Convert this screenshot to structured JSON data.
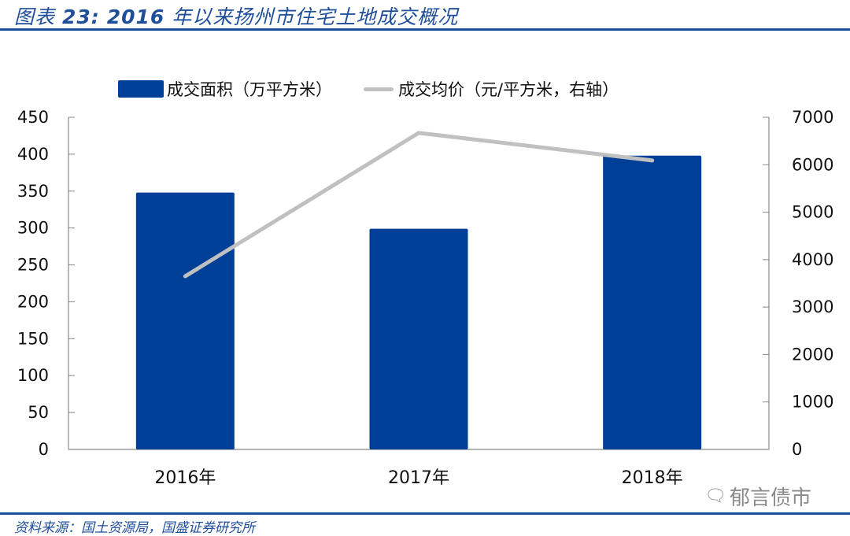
{
  "header": {
    "figure_label": "图表",
    "figure_number": "23:",
    "year": "2016",
    "title_text": "年以来扬州市住宅土地成交概况"
  },
  "legend": {
    "bar_label": "成交面积（万平方米）",
    "line_label": "成交均价（元/平方米，右轴）"
  },
  "footer": {
    "source": "资料来源：国土资源局，国盛证券研究所",
    "watermark": "郁言债市",
    "watermark_icon": "wechat-icon"
  },
  "colors": {
    "bar": "#003f98",
    "line": "#c0c0c0",
    "accent": "#1f4e9a"
  },
  "chart_data": {
    "type": "bar+line",
    "title": "2016年以来扬州市住宅土地成交概况",
    "categories": [
      "2016年",
      "2017年",
      "2018年"
    ],
    "series": [
      {
        "name": "成交面积（万平方米）",
        "type": "bar",
        "axis": "left",
        "values": [
          348,
          299,
          398
        ]
      },
      {
        "name": "成交均价（元/平方米，右轴）",
        "type": "line",
        "axis": "right",
        "values": [
          3650,
          6670,
          6090
        ]
      }
    ],
    "left_axis": {
      "min": 0,
      "max": 450,
      "step": 50,
      "ticks": [
        "0",
        "50",
        "100",
        "150",
        "200",
        "250",
        "300",
        "350",
        "400",
        "450"
      ]
    },
    "right_axis": {
      "min": 0,
      "max": 7000,
      "step": 1000,
      "ticks": [
        "0",
        "1000",
        "2000",
        "3000",
        "4000",
        "5000",
        "6000",
        "7000"
      ]
    },
    "legend_position": "top",
    "grid": false
  }
}
